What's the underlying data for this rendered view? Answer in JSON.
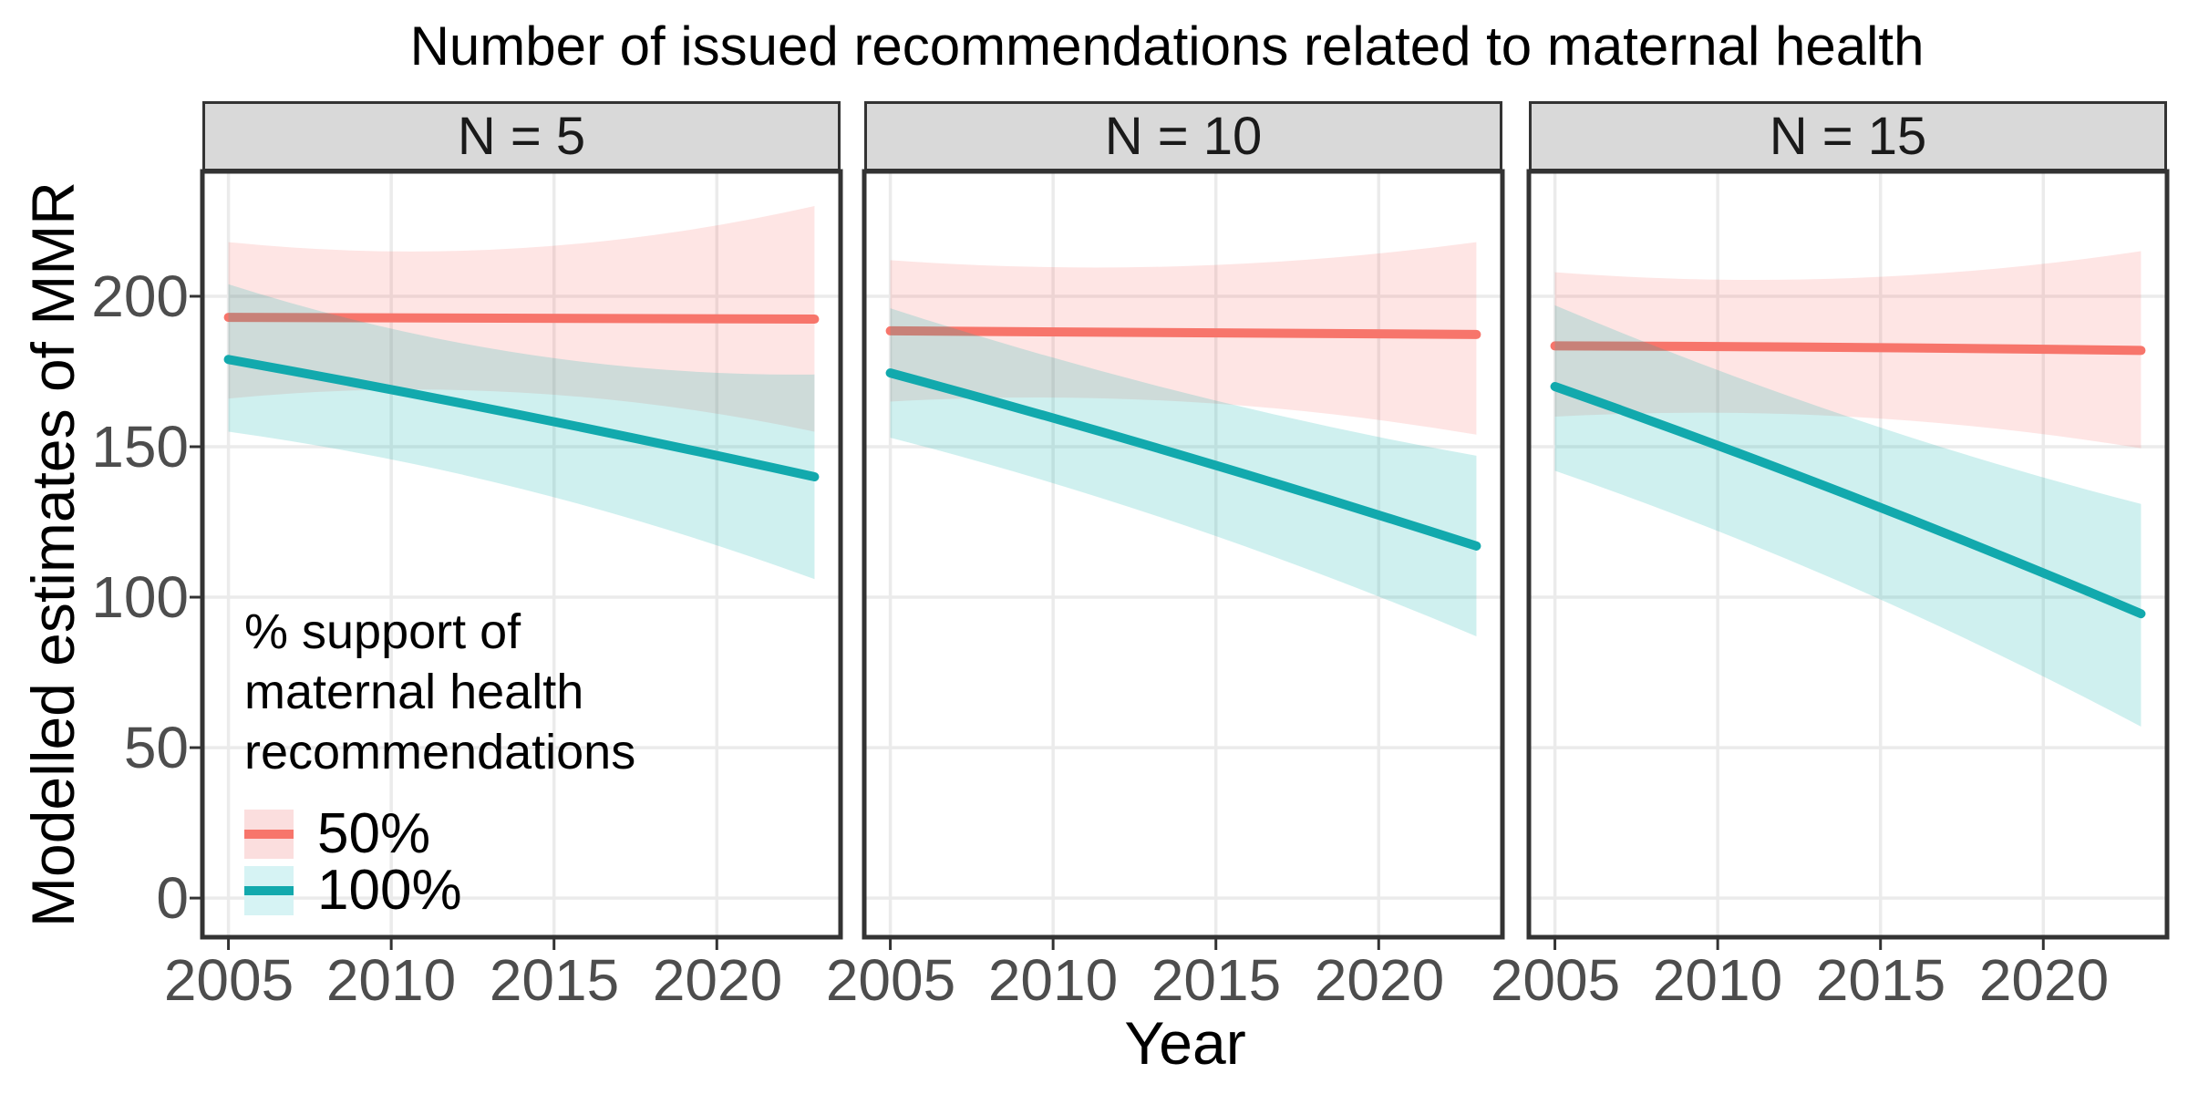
{
  "title": "Number of issued recommendations related to maternal health",
  "axes": {
    "x": {
      "title": "Year",
      "ticks": [
        "2005",
        "2010",
        "2015",
        "2020"
      ]
    },
    "y": {
      "title": "Modelled estimates of MMR",
      "ticks": [
        "0",
        "50",
        "100",
        "150",
        "200"
      ]
    }
  },
  "legend": {
    "title_lines": [
      "% support of",
      "maternal health",
      "recommendations"
    ],
    "items": [
      {
        "label": "50%",
        "line": "#F7756B",
        "bg": "#FBDEDE"
      },
      {
        "label": "100%",
        "line": "#12A9AD",
        "bg": "#D6F3F4"
      }
    ]
  },
  "colors": {
    "grid": "#EBEBEB",
    "tick": "#333333",
    "panel_border": "#333333",
    "strip_bg": "#D9D9D9",
    "axis_text": "#4D4D4D",
    "title_text": "#000000"
  },
  "chart_data": {
    "type": "line",
    "title": "Number of issued recommendations related to maternal health",
    "xlabel": "Year",
    "ylabel": "Modelled estimates of MMR",
    "legend_title": "% support of maternal health recommendations",
    "legend_position": "inside bottom-left of first facet",
    "grid": "major only",
    "x_ticks": [
      2005,
      2010,
      2015,
      2020
    ],
    "y_ticks": [
      0,
      50,
      100,
      150,
      200
    ],
    "xlim": [
      2004.2,
      2023.8
    ],
    "ylim": [
      -13,
      241.5
    ],
    "grid_color": "#EBEBEB",
    "tick_color": "#333333",
    "series_styles": [
      {
        "name": "50%",
        "line": "#F7756B",
        "fill": "#F8766D",
        "fill_opacity": 0.19
      },
      {
        "name": "100%",
        "line": "#12A9AD",
        "fill": "#0FB4AF",
        "fill_opacity": 0.2
      }
    ],
    "facets": [
      {
        "label": "N = 5",
        "series": [
          {
            "name": "50%",
            "x": [
              2005,
              2014,
              2023
            ],
            "y": [
              193,
              192.7,
              192.4
            ],
            "ribbon_upper": [
              218,
              216,
              230
            ],
            "ribbon_lower": [
              166,
              168,
              155
            ]
          },
          {
            "name": "100%",
            "x": [
              2005,
              2014,
              2023
            ],
            "y": [
              179,
              160.5,
              140
            ],
            "ribbon_upper": [
              204,
              181,
              174
            ],
            "ribbon_lower": [
              155,
              136,
              106
            ]
          }
        ]
      },
      {
        "label": "N = 10",
        "series": [
          {
            "name": "50%",
            "x": [
              2005,
              2014,
              2023
            ],
            "y": [
              188.5,
              188,
              187.3
            ],
            "ribbon_upper": [
              212,
              210,
              218
            ],
            "ribbon_lower": [
              165,
              165,
              154
            ]
          },
          {
            "name": "100%",
            "x": [
              2005,
              2014,
              2023
            ],
            "y": [
              174.5,
              147,
              117
            ],
            "ribbon_upper": [
              196,
              168,
              147
            ],
            "ribbon_lower": [
              153,
              124,
              87
            ]
          }
        ]
      },
      {
        "label": "N = 15",
        "series": [
          {
            "name": "50%",
            "x": [
              2005,
              2014,
              2023
            ],
            "y": [
              183.5,
              183,
              182
            ],
            "ribbon_upper": [
              208,
              206,
              215
            ],
            "ribbon_lower": [
              160,
              160,
              149.5
            ]
          },
          {
            "name": "100%",
            "x": [
              2005,
              2014,
              2023
            ],
            "y": [
              170,
              134,
              94.5
            ],
            "ribbon_upper": [
              197,
              160,
              131
            ],
            "ribbon_lower": [
              142,
              104,
              57
            ]
          }
        ]
      }
    ]
  }
}
